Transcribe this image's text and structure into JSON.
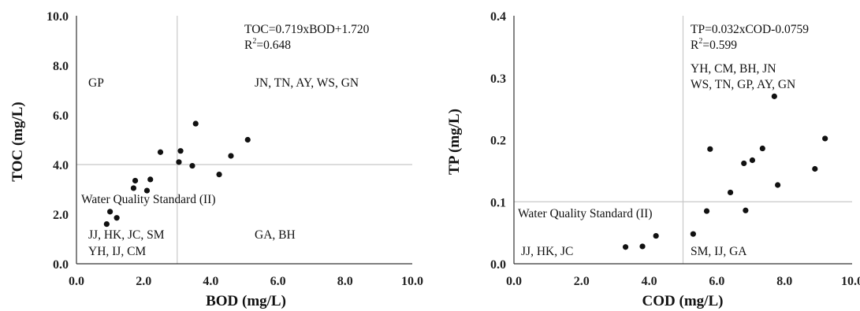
{
  "chart_data": [
    {
      "type": "scatter",
      "xlabel": "BOD (mg/L)",
      "ylabel": "TOC (mg/L)",
      "xlim": [
        0,
        10
      ],
      "ylim": [
        0,
        10
      ],
      "x_ticks": [
        "0.0",
        "2.0",
        "4.0",
        "6.0",
        "8.0",
        "10.0"
      ],
      "y_ticks": [
        "0.0",
        "2.0",
        "4.0",
        "6.0",
        "8.0",
        "10.0"
      ],
      "grid": false,
      "reference_lines": {
        "x": 3.0,
        "y": 4.0
      },
      "equation": "TOC=0.719xBOD+1.720",
      "r2_label": "R",
      "r2_sup": "2",
      "r2_value": "=0.648",
      "points": [
        {
          "x": 0.9,
          "y": 1.6
        },
        {
          "x": 1.0,
          "y": 2.1
        },
        {
          "x": 1.2,
          "y": 1.85
        },
        {
          "x": 1.7,
          "y": 3.05
        },
        {
          "x": 1.75,
          "y": 3.35
        },
        {
          "x": 2.1,
          "y": 2.95
        },
        {
          "x": 2.2,
          "y": 3.4
        },
        {
          "x": 2.5,
          "y": 4.5
        },
        {
          "x": 3.05,
          "y": 4.1
        },
        {
          "x": 3.1,
          "y": 4.55
        },
        {
          "x": 3.45,
          "y": 3.95
        },
        {
          "x": 3.55,
          "y": 5.65
        },
        {
          "x": 4.25,
          "y": 3.6
        },
        {
          "x": 4.6,
          "y": 4.35
        },
        {
          "x": 5.1,
          "y": 5.0
        }
      ],
      "annotations": {
        "top_left": "GP",
        "top_right": "JN, TN, AY, WS, GN",
        "standard": "Water Quality Standard (II)",
        "bottom_left_1": "JJ, HK, JC, SM",
        "bottom_left_2": "YH, IJ, CM",
        "bottom_right": "GA, BH"
      }
    },
    {
      "type": "scatter",
      "xlabel": "COD (mg/L)",
      "ylabel": "TP (mg/L)",
      "xlim": [
        0,
        10
      ],
      "ylim": [
        0,
        0.4
      ],
      "x_ticks": [
        "0.0",
        "2.0",
        "4.0",
        "6.0",
        "8.0",
        "10.0"
      ],
      "y_ticks": [
        "0.0",
        "0.1",
        "0.2",
        "0.3",
        "0.4"
      ],
      "grid": false,
      "reference_lines": {
        "x": 5.0,
        "y": 0.1
      },
      "equation": "TP=0.032xCOD-0.0759",
      "r2_label": "R",
      "r2_sup": "2",
      "r2_value": "=0.599",
      "points": [
        {
          "x": 3.3,
          "y": 0.027
        },
        {
          "x": 3.8,
          "y": 0.028
        },
        {
          "x": 4.2,
          "y": 0.045
        },
        {
          "x": 5.3,
          "y": 0.048
        },
        {
          "x": 5.7,
          "y": 0.085
        },
        {
          "x": 5.8,
          "y": 0.185
        },
        {
          "x": 6.4,
          "y": 0.115
        },
        {
          "x": 6.8,
          "y": 0.162
        },
        {
          "x": 6.85,
          "y": 0.086
        },
        {
          "x": 7.05,
          "y": 0.167
        },
        {
          "x": 7.35,
          "y": 0.186
        },
        {
          "x": 7.7,
          "y": 0.27
        },
        {
          "x": 7.8,
          "y": 0.127
        },
        {
          "x": 8.9,
          "y": 0.153
        },
        {
          "x": 9.2,
          "y": 0.202
        }
      ],
      "annotations": {
        "top_right_1": "YH, CM, BH, JN",
        "top_right_2": "WS, TN, GP, AY, GN",
        "standard": "Water Quality Standard (II)",
        "bottom_left": "JJ, HK, JC",
        "bottom_right": "SM, IJ, GA"
      }
    }
  ]
}
